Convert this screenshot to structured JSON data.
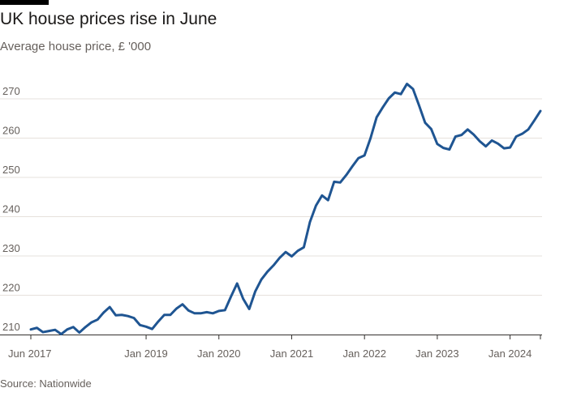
{
  "title": "UK house prices rise in June",
  "subtitle": "Average house price, £ '000",
  "source": "Source: Nationwide",
  "colors": {
    "line": "#1f5592",
    "grid": "#e6e1dc",
    "axis": "#33302e",
    "text": "#66605c"
  },
  "chart_data": {
    "type": "line",
    "title": "UK house prices rise in June",
    "ylabel": "Average house price, £ '000",
    "ylim": [
      210,
      275
    ],
    "yticks": [
      210,
      220,
      230,
      240,
      250,
      260,
      270
    ],
    "xticks": [
      "Jun 2017",
      "Jan 2019",
      "Jan 2020",
      "Jan 2021",
      "Jan 2022",
      "Jan 2023",
      "Jan 2024"
    ],
    "grid": true,
    "x_start": "Jun 2017",
    "x_end": "Jun 2024",
    "frequency": "monthly",
    "values": [
      211.3,
      211.7,
      210.6,
      210.9,
      211.2,
      210.1,
      211.3,
      211.9,
      210.5,
      211.9,
      213.1,
      213.8,
      215.6,
      217.0,
      214.9,
      215.0,
      214.7,
      214.2,
      212.4,
      212.0,
      211.4,
      213.3,
      215.0,
      215.0,
      216.6,
      217.7,
      216.1,
      215.4,
      215.4,
      215.7,
      215.4,
      216.0,
      216.2,
      219.7,
      223.0,
      219.1,
      216.5,
      221.0,
      224.0,
      226.0,
      227.6,
      229.5,
      231.0,
      229.9,
      231.3,
      232.2,
      238.6,
      242.8,
      245.4,
      244.2,
      248.9,
      248.7,
      250.6,
      252.8,
      254.9,
      255.6,
      260.0,
      265.3,
      267.8,
      270.1,
      271.6,
      271.2,
      273.8,
      272.5,
      268.3,
      263.9,
      262.3,
      258.5,
      257.5,
      257.1,
      260.4,
      260.8,
      262.2,
      260.9,
      259.2,
      257.9,
      259.4,
      258.6,
      257.4,
      257.6,
      260.4,
      261.1,
      262.2,
      264.5,
      266.9
    ]
  }
}
